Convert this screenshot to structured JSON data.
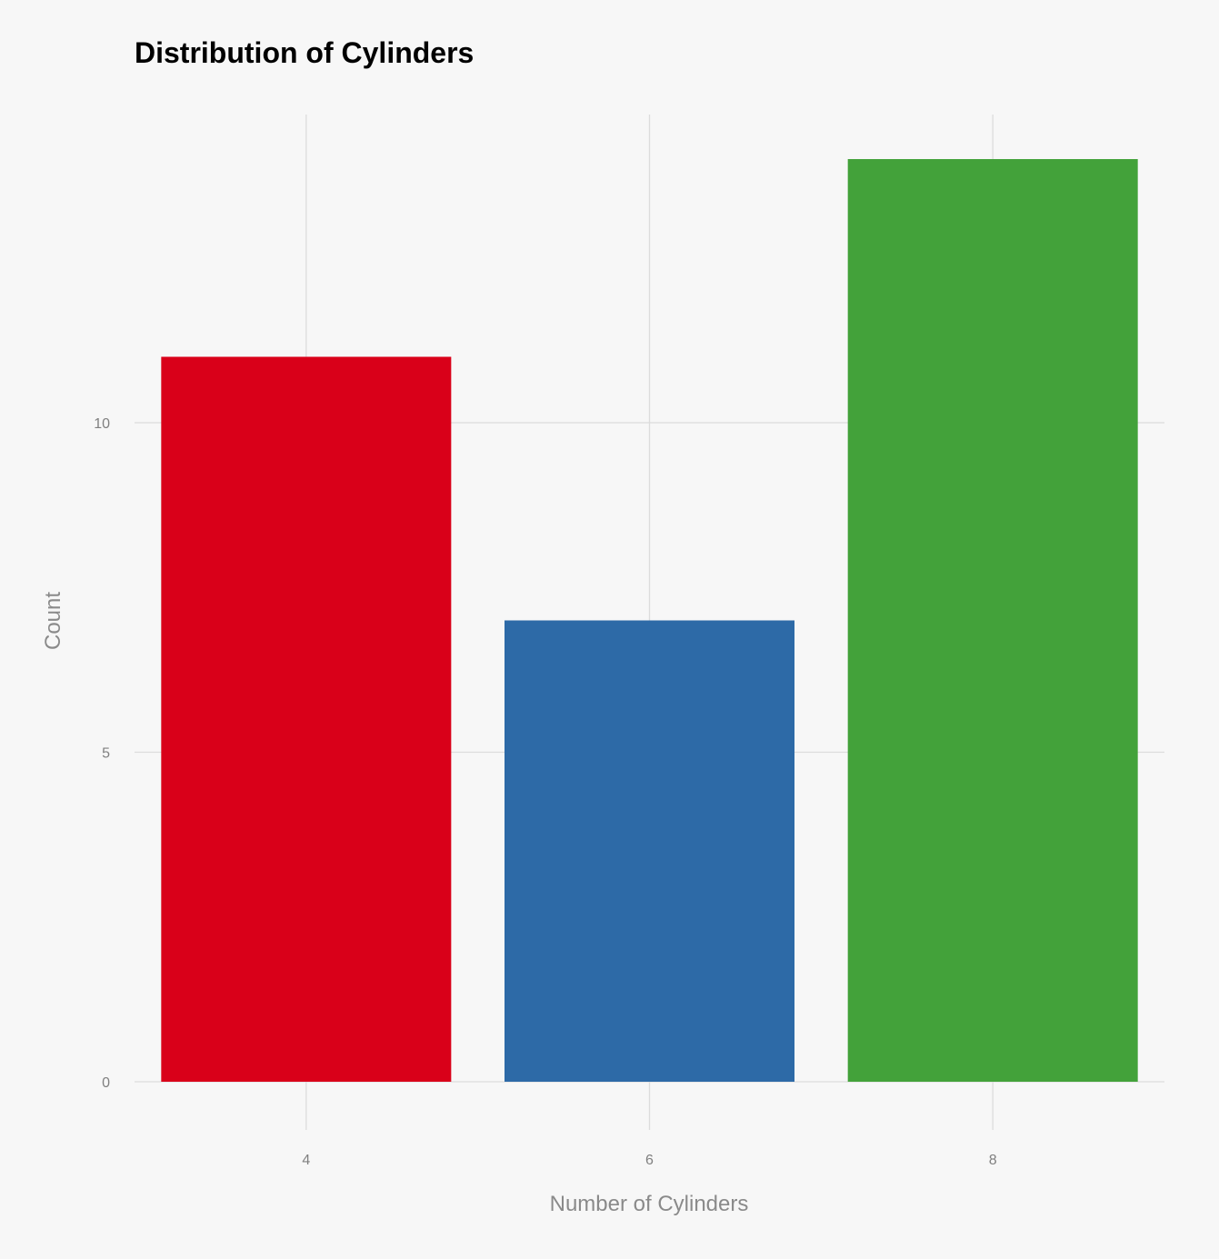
{
  "chart_data": {
    "type": "bar",
    "title": "Distribution of Cylinders",
    "xlabel": "Number of Cylinders",
    "ylabel": "Count",
    "categories": [
      "4",
      "6",
      "8"
    ],
    "values": [
      11,
      7,
      14
    ],
    "colors": [
      "#d90019",
      "#2d6aa7",
      "#43a23a"
    ],
    "y_ticks": [
      0,
      5,
      10
    ],
    "ylim": [
      0,
      14.7
    ],
    "grid": true,
    "legend": "none",
    "background": "#f7f7f7"
  }
}
